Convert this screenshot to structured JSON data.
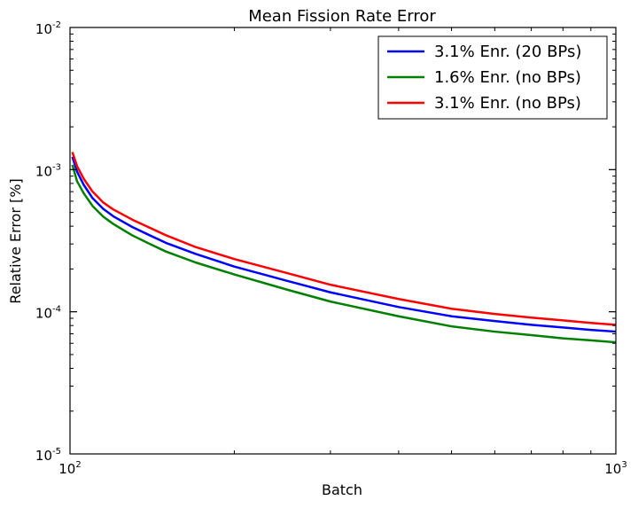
{
  "chart_data": {
    "type": "line",
    "title": "Mean Fission Rate Error",
    "xlabel": "Batch",
    "ylabel": "Relative Error [%]",
    "xscale": "log",
    "yscale": "log",
    "xlim": [
      100,
      1000
    ],
    "ylim": [
      1e-05,
      0.01
    ],
    "grid": false,
    "legend_position": "top-right",
    "x_tick_labels": [
      {
        "value": 100,
        "base": "10",
        "exp": "2"
      },
      {
        "value": 1000,
        "base": "10",
        "exp": "3"
      }
    ],
    "y_tick_labels": [
      {
        "value": 1e-05,
        "base": "10",
        "exp": "-5"
      },
      {
        "value": 0.0001,
        "base": "10",
        "exp": "-4"
      },
      {
        "value": 0.001,
        "base": "10",
        "exp": "-3"
      },
      {
        "value": 0.01,
        "base": "10",
        "exp": "-2"
      }
    ],
    "series": [
      {
        "name": "3.1% Enr. (20 BPs)",
        "color": "#0000ff",
        "x": [
          101,
          103,
          106,
          110,
          115,
          120,
          130,
          140,
          150,
          170,
          200,
          250,
          300,
          400,
          500,
          600,
          700,
          800,
          900,
          1000
        ],
        "y": [
          0.00123,
          0.00097,
          0.00078,
          0.00063,
          0.00053,
          0.00047,
          0.000395,
          0.000345,
          0.000305,
          0.000255,
          0.000208,
          0.000165,
          0.000137,
          0.000108,
          9.3e-05,
          8.6e-05,
          8.1e-05,
          7.75e-05,
          7.45e-05,
          7.25e-05
        ]
      },
      {
        "name": "1.6% Enr. (no BPs)",
        "color": "#008000",
        "x": [
          101,
          103,
          106,
          110,
          115,
          120,
          130,
          140,
          150,
          170,
          200,
          250,
          300,
          400,
          500,
          600,
          700,
          800,
          900,
          1000
        ],
        "y": [
          0.00108,
          0.00083,
          0.00068,
          0.000555,
          0.000468,
          0.000415,
          0.000345,
          0.0003,
          0.000265,
          0.000222,
          0.000183,
          0.000143,
          0.000118,
          9.3e-05,
          7.9e-05,
          7.25e-05,
          6.85e-05,
          6.5e-05,
          6.3e-05,
          6.1e-05
        ]
      },
      {
        "name": "3.1% Enr. (no BPs)",
        "color": "#ff0000",
        "x": [
          101,
          103,
          106,
          110,
          115,
          120,
          130,
          140,
          150,
          170,
          200,
          250,
          300,
          400,
          500,
          600,
          700,
          800,
          900,
          1000
        ],
        "y": [
          0.00133,
          0.00106,
          0.00086,
          0.0007,
          0.000588,
          0.000525,
          0.000445,
          0.00039,
          0.000345,
          0.000285,
          0.000235,
          0.000187,
          0.000155,
          0.000123,
          0.000105,
          9.65e-05,
          9.1e-05,
          8.7e-05,
          8.35e-05,
          8.1e-05
        ]
      }
    ]
  }
}
